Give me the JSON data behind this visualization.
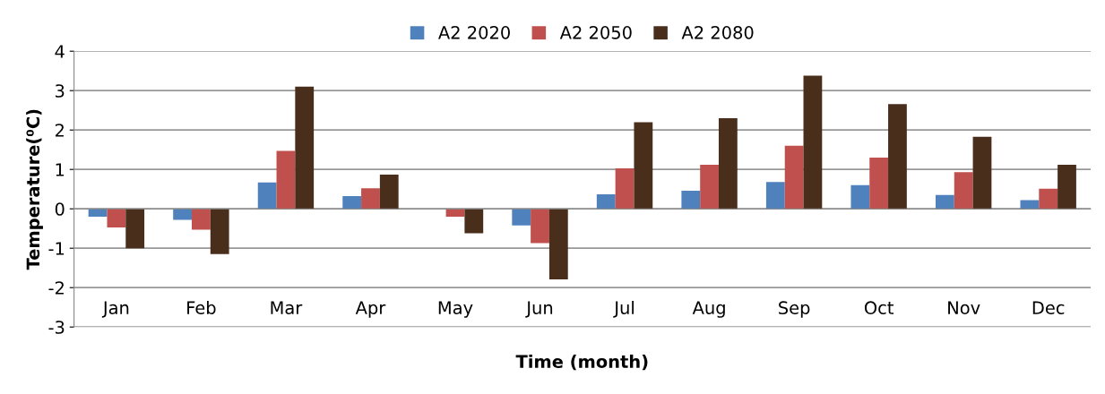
{
  "chart_data": {
    "type": "bar",
    "xlabel": "Time (month)",
    "ylabel": "Temperature(⁰C)",
    "categories": [
      "Jan",
      "Feb",
      "Mar",
      "Apr",
      "May",
      "Jun",
      "Jul",
      "Aug",
      "Sep",
      "Oct",
      "Nov",
      "Dec"
    ],
    "series": [
      {
        "name": "A2 2020",
        "color": "#4f81bd",
        "values": [
          -0.2,
          -0.28,
          0.67,
          0.32,
          0,
          -0.42,
          0.37,
          0.46,
          0.68,
          0.6,
          0.35,
          0.22
        ]
      },
      {
        "name": "A2 2050",
        "color": "#c0504d",
        "values": [
          -0.47,
          -0.53,
          1.47,
          0.52,
          -0.2,
          -0.87,
          1.03,
          1.12,
          1.6,
          1.3,
          0.93,
          0.51
        ]
      },
      {
        "name": "A2 2080",
        "color": "#4a2e1c",
        "values": [
          -1.0,
          -1.15,
          3.1,
          0.87,
          -0.62,
          -1.79,
          2.2,
          2.3,
          3.38,
          2.66,
          1.83,
          1.12
        ]
      }
    ],
    "ylim": [
      -3,
      4
    ],
    "yticks": [
      -3,
      -2,
      -1,
      0,
      1,
      2,
      3,
      4
    ],
    "grid": "y",
    "legend": "top"
  }
}
